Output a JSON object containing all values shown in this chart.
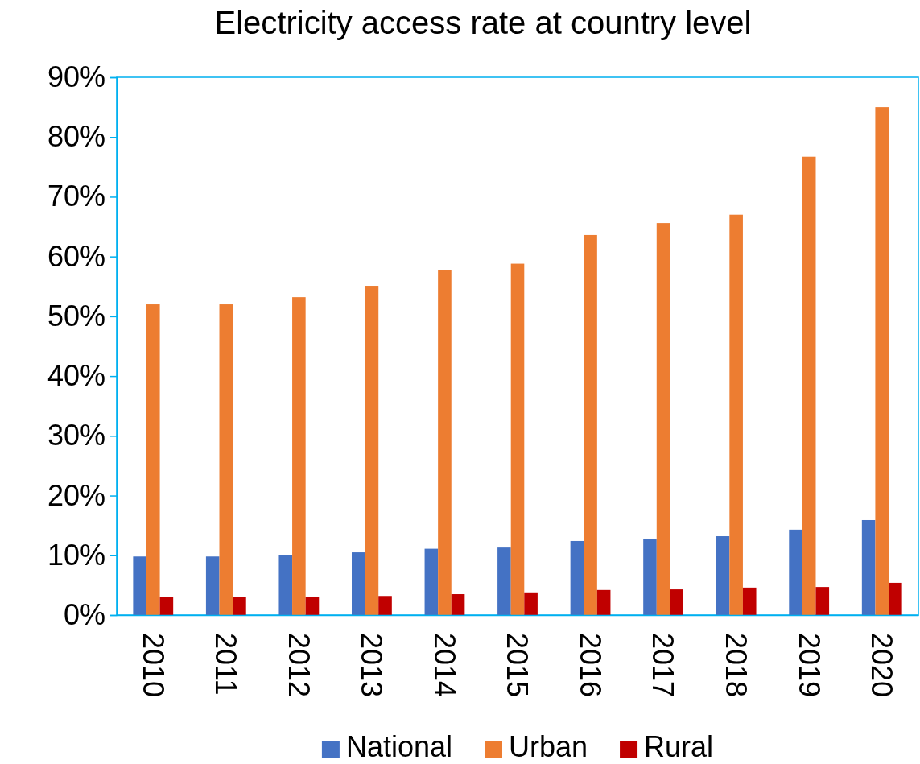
{
  "chart_data": {
    "type": "bar",
    "title": "Electricity access rate at country level",
    "categories": [
      "2010",
      "2011",
      "2012",
      "2013",
      "2014",
      "2015",
      "2016",
      "2017",
      "2018",
      "2019",
      "2020"
    ],
    "series": [
      {
        "name": "National",
        "color": "#4472c4",
        "values": [
          9.8,
          9.8,
          10.1,
          10.5,
          11.1,
          11.3,
          12.4,
          12.8,
          13.2,
          14.3,
          15.9
        ]
      },
      {
        "name": "Urban",
        "color": "#ed7d31",
        "values": [
          52,
          52,
          53.2,
          55.1,
          57.7,
          58.8,
          63.6,
          65.6,
          67,
          76.7,
          85
        ]
      },
      {
        "name": "Rural",
        "color": "#c00000",
        "values": [
          3,
          3,
          3.1,
          3.2,
          3.5,
          3.8,
          4.2,
          4.3,
          4.6,
          4.7,
          5.4
        ]
      }
    ],
    "ylim": [
      0,
      90
    ],
    "yticks": [
      {
        "value": 0,
        "label": "0%"
      },
      {
        "value": 10,
        "label": "10%"
      },
      {
        "value": 20,
        "label": "20%"
      },
      {
        "value": 30,
        "label": "30%"
      },
      {
        "value": 40,
        "label": "40%"
      },
      {
        "value": 50,
        "label": "50%"
      },
      {
        "value": 60,
        "label": "60%"
      },
      {
        "value": 70,
        "label": "70%"
      },
      {
        "value": 80,
        "label": "80%"
      },
      {
        "value": 90,
        "label": "90%"
      }
    ],
    "grid": false,
    "legend": "bottom"
  }
}
